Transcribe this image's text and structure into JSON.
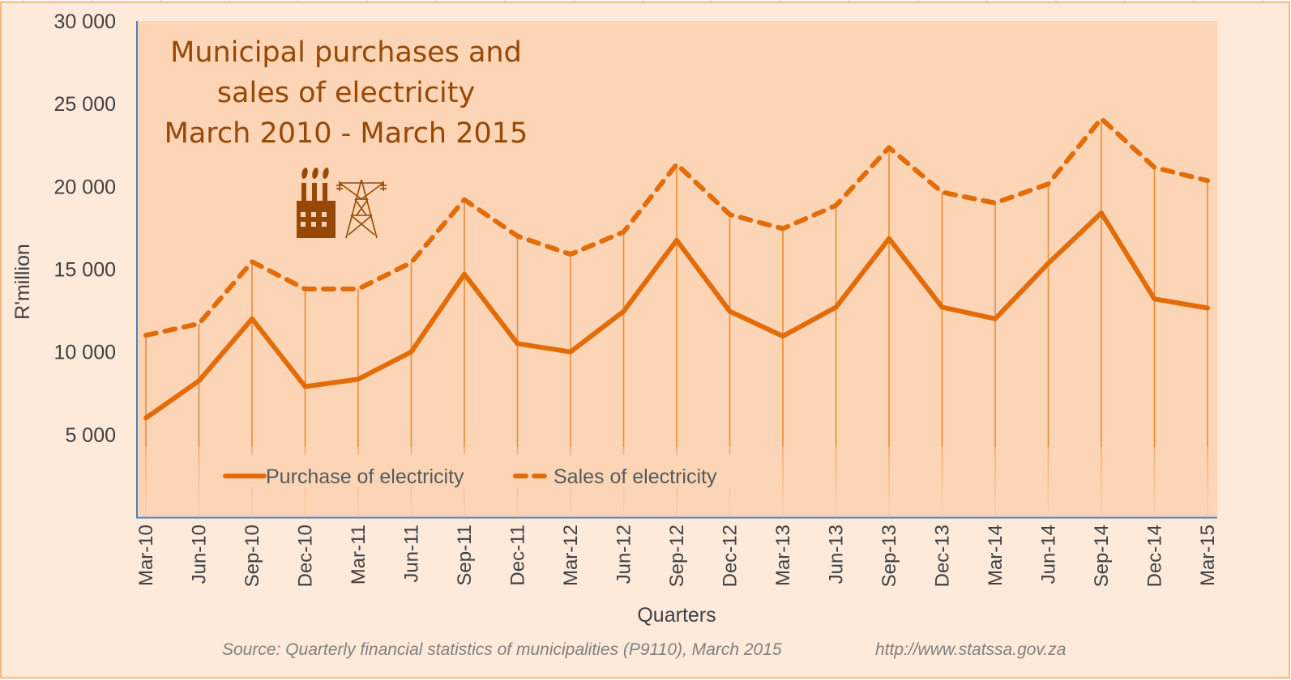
{
  "colors": {
    "outer_background": "#FDEADB",
    "plot_background": "#FBD5B5",
    "frame_border": "#F0A35E",
    "axis_line": "#4F81BD",
    "series": "#E36C09",
    "drop_line": "#EE8A35",
    "title": "#974806",
    "icon": "#974806",
    "axis_text": "#404040",
    "legend_text": "#595959",
    "source_text": "#808080"
  },
  "icons": [
    "factory-icon",
    "power-pylon-icon"
  ],
  "chart_data": {
    "type": "line",
    "title": "Municipal purchases and sales of electricity March 2010 - March 2015",
    "title_lines": [
      "Municipal purchases and",
      "sales of electricity",
      "March 2010 - March 2015"
    ],
    "xlabel": "Quarters",
    "ylabel": "R'million",
    "ylim": [
      0,
      30000
    ],
    "yticks": [
      5000,
      10000,
      15000,
      20000,
      25000,
      30000
    ],
    "ytick_labels": [
      "5 000",
      "10 000",
      "15 000",
      "20 000",
      "25 000",
      "30 000"
    ],
    "grid": false,
    "drop_lines": true,
    "legend_position": "bottom-left-inside",
    "categories": [
      "Mar-10",
      "Jun-10",
      "Sep-10",
      "Dec-10",
      "Mar-11",
      "Jun-11",
      "Sep-11",
      "Dec-11",
      "Mar-12",
      "Jun-12",
      "Sep-12",
      "Dec-12",
      "Mar-13",
      "Jun-13",
      "Sep-13",
      "Dec-13",
      "Mar-14",
      "Jun-14",
      "Sep-14",
      "Dec-14",
      "Mar-15"
    ],
    "series": [
      {
        "name": "Purchase of electricity",
        "style": "solid",
        "values": [
          6000,
          8250,
          12000,
          7900,
          8350,
          10000,
          14700,
          10500,
          10000,
          12450,
          16750,
          12450,
          10950,
          12700,
          16850,
          12700,
          12000,
          15350,
          18400,
          13200,
          12650
        ]
      },
      {
        "name": "Sales of electricity",
        "style": "dashed",
        "values": [
          11000,
          11700,
          15450,
          13800,
          13800,
          15400,
          19200,
          17000,
          15900,
          17250,
          21350,
          18300,
          17450,
          18850,
          22350,
          19650,
          19000,
          20150,
          24100,
          21150,
          20350
        ]
      }
    ],
    "source_note": "Source: Quarterly financial statistics of municipalities (P9110), March 2015",
    "source_url": "http://www.statssa.gov.za"
  }
}
